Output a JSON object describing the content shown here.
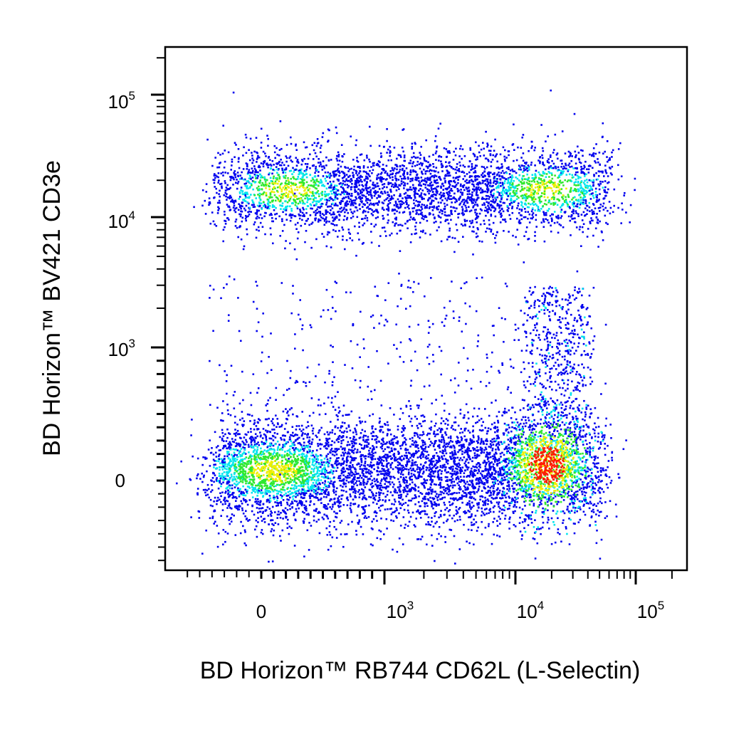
{
  "chart_data": {
    "type": "scatter",
    "style": "density-colored flow cytometry dot plot",
    "title": "",
    "xlabel": "BD Horizon™ RB744 CD62L (L-Selectin)",
    "ylabel": "BD Horizon™ BV421 CD3e",
    "x_scale": "biexponential",
    "y_scale": "biexponential",
    "xlim": [
      -700,
      160000
    ],
    "ylim": [
      -500,
      200000
    ],
    "x_ticks": [
      {
        "value": 0,
        "base": "0",
        "exp": ""
      },
      {
        "value": 1000,
        "base": "10",
        "exp": "3"
      },
      {
        "value": 10000,
        "base": "10",
        "exp": "4"
      },
      {
        "value": 100000,
        "base": "10",
        "exp": "5"
      }
    ],
    "y_ticks": [
      {
        "value": 0,
        "base": "0",
        "exp": ""
      },
      {
        "value": 1000,
        "base": "10",
        "exp": "3"
      },
      {
        "value": 10000,
        "base": "10",
        "exp": "4"
      },
      {
        "value": 100000,
        "base": "10",
        "exp": "5"
      }
    ],
    "grid": false,
    "legend": "none",
    "density_colors": [
      "#0000ee",
      "#00e5ee",
      "#2ee82e",
      "#eeee00",
      "#ff1a00"
    ],
    "populations": [
      {
        "name": "",
        "x_range": [
          -250,
          60000
        ],
        "y_range": [
          5000,
          40000
        ],
        "cells": 3800,
        "peaks": [
          [
            200,
            17000
          ],
          [
            18000,
            17000
          ]
        ]
      },
      {
        "name": "",
        "x_range": [
          -250,
          60000
        ],
        "y_range": [
          -250,
          700
        ],
        "cells": 5200,
        "peaks": [
          [
            100,
            80
          ],
          [
            18000,
            120
          ]
        ]
      },
      {
        "name": "",
        "x_range": [
          10000,
          40000
        ],
        "y_range": [
          400,
          3000
        ],
        "cells": 500,
        "peaks": [
          [
            20000,
            900
          ]
        ]
      }
    ]
  }
}
